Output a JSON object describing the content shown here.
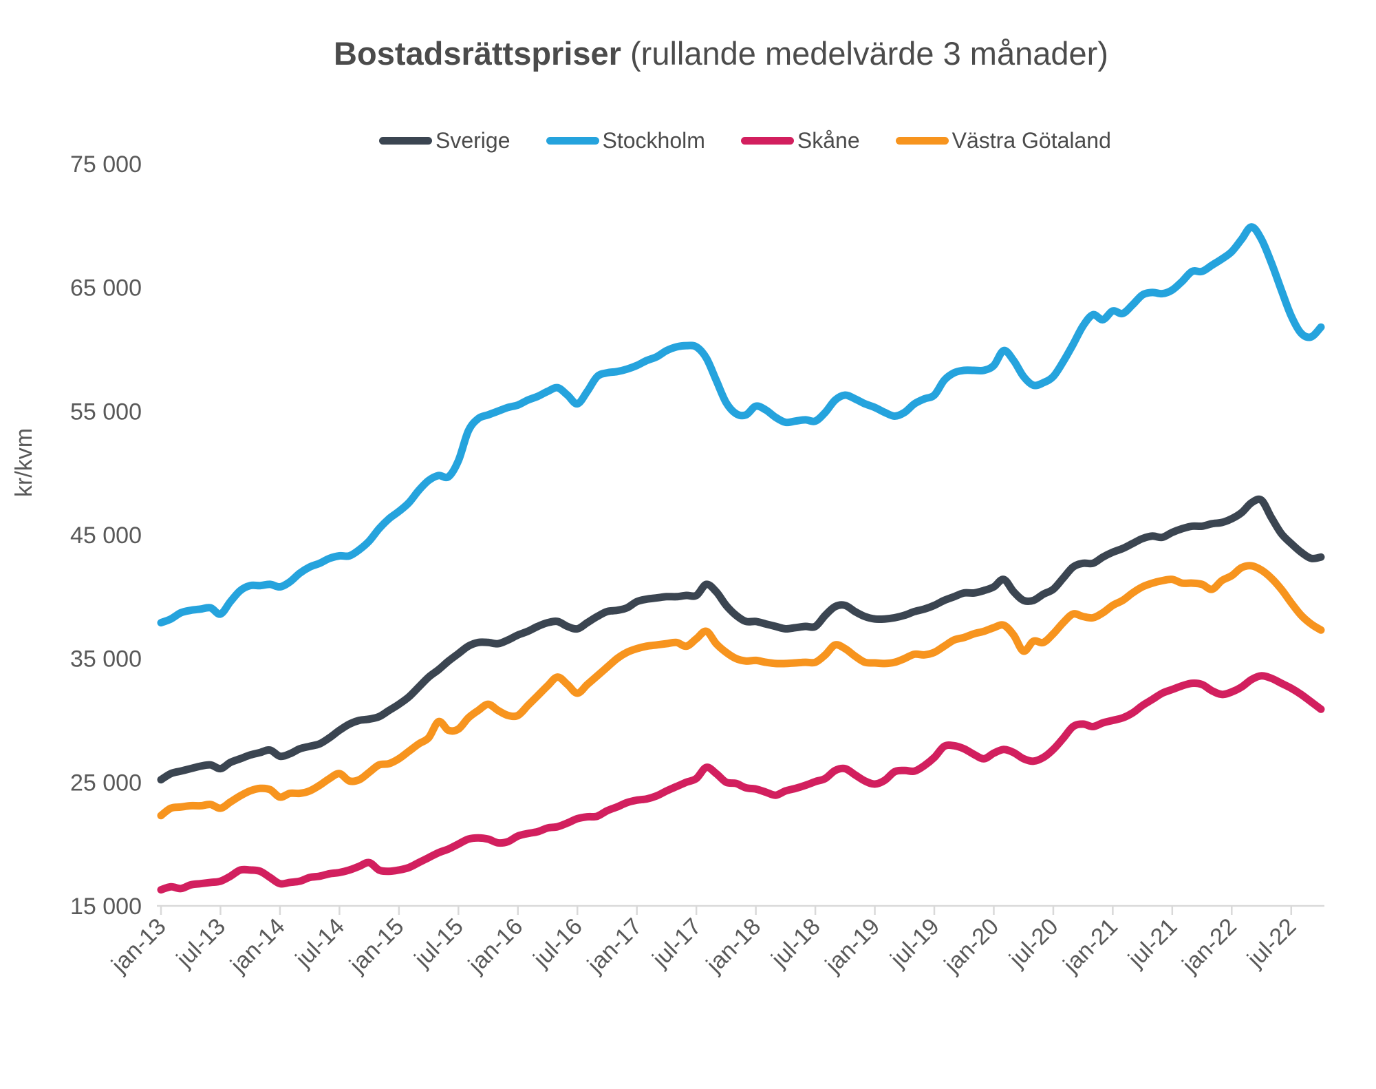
{
  "title": {
    "bold": "Bostadsrättspriser",
    "regular": " (rullande medelvärde 3 månader)"
  },
  "y_axis": {
    "label": "kr/kvm",
    "ticks": [
      "75 000",
      "65 000",
      "55 000",
      "45 000",
      "35 000",
      "25 000",
      "15 000"
    ],
    "tick_values": [
      75000,
      65000,
      55000,
      45000,
      35000,
      25000,
      15000
    ]
  },
  "x_axis": {
    "tick_labels": [
      "jan-13",
      "jul-13",
      "jan-14",
      "jul-14",
      "jan-15",
      "jul-15",
      "jan-16",
      "jul-16",
      "jan-17",
      "jul-17",
      "jan-18",
      "jul-18",
      "jan-19",
      "jul-19",
      "jan-20",
      "jul-20",
      "jan-21",
      "jul-21",
      "jan-22",
      "jul-22"
    ]
  },
  "colors": {
    "axis_line": "#d9d9d9",
    "text": "#595959",
    "title_text": "#4b4b4b",
    "background": "#ffffff"
  },
  "chart_data": {
    "type": "line",
    "title": "Bostadsrättspriser (rullande medelvärde 3 månader)",
    "xlabel": "",
    "ylabel": "kr/kvm",
    "ylim": [
      15000,
      75000
    ],
    "grid": false,
    "legend_position": "top",
    "x": {
      "start": "jan-13",
      "end": "okt-22",
      "interval": "month",
      "points": 118
    },
    "series": [
      {
        "name": "Sverige",
        "color": "#3b4551",
        "values": [
          25200,
          25700,
          25900,
          26100,
          26300,
          26400,
          26100,
          26600,
          26900,
          27200,
          27400,
          27600,
          27100,
          27300,
          27700,
          27900,
          28100,
          28600,
          29200,
          29700,
          30000,
          30100,
          30300,
          30800,
          31300,
          31900,
          32700,
          33500,
          34100,
          34800,
          35400,
          36000,
          36300,
          36300,
          36200,
          36500,
          36900,
          37200,
          37600,
          37900,
          38000,
          37600,
          37400,
          37900,
          38400,
          38800,
          38900,
          39100,
          39600,
          39800,
          39900,
          40000,
          40000,
          40100,
          40100,
          41000,
          40400,
          39300,
          38500,
          38000,
          38000,
          37800,
          37600,
          37400,
          37500,
          37600,
          37600,
          38500,
          39200,
          39300,
          38800,
          38400,
          38200,
          38200,
          38300,
          38500,
          38800,
          39000,
          39300,
          39700,
          40000,
          40300,
          40300,
          40500,
          40800,
          41400,
          40400,
          39700,
          39700,
          40200,
          40600,
          41500,
          42400,
          42700,
          42700,
          43200,
          43600,
          43900,
          44300,
          44700,
          44900,
          44800,
          45200,
          45500,
          45700,
          45700,
          45900,
          46000,
          46300,
          46800,
          47600,
          47800,
          46400,
          45100,
          44300,
          43600,
          43100,
          43200
        ]
      },
      {
        "name": "Stockholm",
        "color": "#25a3dd",
        "values": [
          37900,
          38200,
          38700,
          38900,
          39000,
          39100,
          38600,
          39600,
          40500,
          40900,
          40900,
          41000,
          40800,
          41200,
          41900,
          42400,
          42700,
          43100,
          43300,
          43300,
          43800,
          44500,
          45500,
          46300,
          46900,
          47600,
          48600,
          49400,
          49800,
          49700,
          51000,
          53400,
          54400,
          54700,
          55000,
          55300,
          55500,
          55900,
          56200,
          56600,
          56900,
          56300,
          55600,
          56600,
          57800,
          58100,
          58200,
          58400,
          58700,
          59100,
          59400,
          59900,
          60200,
          60300,
          60200,
          59300,
          57500,
          55700,
          54800,
          54700,
          55400,
          55100,
          54500,
          54100,
          54200,
          54300,
          54200,
          54900,
          55900,
          56300,
          56000,
          55600,
          55300,
          54900,
          54600,
          54900,
          55600,
          56000,
          56300,
          57500,
          58100,
          58300,
          58300,
          58300,
          58700,
          59900,
          59100,
          57800,
          57100,
          57300,
          57800,
          59000,
          60400,
          61900,
          62800,
          62400,
          63100,
          62900,
          63600,
          64400,
          64600,
          64500,
          64800,
          65500,
          66300,
          66300,
          66800,
          67300,
          67900,
          68900,
          69900,
          68900,
          67000,
          64800,
          62700,
          61300,
          61000,
          61800
        ]
      },
      {
        "name": "Skåne",
        "color": "#d21f5e",
        "values": [
          16300,
          16550,
          16400,
          16700,
          16800,
          16900,
          17000,
          17400,
          17900,
          17900,
          17800,
          17300,
          16800,
          16900,
          17000,
          17300,
          17400,
          17600,
          17700,
          17900,
          18200,
          18500,
          17900,
          17800,
          17900,
          18100,
          18500,
          18900,
          19300,
          19600,
          20000,
          20400,
          20500,
          20400,
          20100,
          20200,
          20650,
          20850,
          21000,
          21300,
          21400,
          21700,
          22050,
          22200,
          22250,
          22700,
          23000,
          23350,
          23550,
          23650,
          23900,
          24300,
          24650,
          25000,
          25300,
          26200,
          25700,
          25000,
          24900,
          24550,
          24450,
          24200,
          23950,
          24300,
          24500,
          24750,
          25050,
          25300,
          25950,
          26100,
          25600,
          25100,
          24850,
          25150,
          25850,
          25950,
          25900,
          26350,
          27000,
          27900,
          27950,
          27700,
          27250,
          26900,
          27350,
          27650,
          27400,
          26900,
          26700,
          27000,
          27650,
          28550,
          29500,
          29700,
          29500,
          29800,
          30000,
          30200,
          30600,
          31200,
          31700,
          32200,
          32500,
          32800,
          33000,
          32900,
          32400,
          32100,
          32300,
          32700,
          33300,
          33600,
          33400,
          33000,
          32600,
          32100,
          31500,
          30900
        ]
      },
      {
        "name": "Västra Götaland",
        "color": "#f7941e",
        "values": [
          22300,
          22900,
          23000,
          23100,
          23100,
          23200,
          22900,
          23400,
          23900,
          24300,
          24500,
          24400,
          23800,
          24100,
          24100,
          24300,
          24750,
          25300,
          25700,
          25100,
          25200,
          25800,
          26400,
          26500,
          26900,
          27500,
          28100,
          28600,
          29900,
          29200,
          29300,
          30200,
          30800,
          31300,
          30800,
          30400,
          30400,
          31200,
          32000,
          32800,
          33500,
          32900,
          32200,
          32900,
          33600,
          34300,
          35000,
          35500,
          35800,
          36000,
          36100,
          36200,
          36300,
          36000,
          36600,
          37200,
          36200,
          35500,
          35000,
          34800,
          34850,
          34700,
          34600,
          34600,
          34650,
          34700,
          34700,
          35300,
          36100,
          35800,
          35200,
          34700,
          34650,
          34600,
          34700,
          35000,
          35350,
          35300,
          35500,
          36000,
          36500,
          36700,
          37000,
          37200,
          37500,
          37700,
          36900,
          35600,
          36400,
          36300,
          37000,
          37900,
          38600,
          38400,
          38300,
          38700,
          39300,
          39700,
          40300,
          40800,
          41100,
          41300,
          41400,
          41100,
          41100,
          41000,
          40600,
          41300,
          41700,
          42350,
          42500,
          42150,
          41500,
          40600,
          39500,
          38500,
          37800,
          37300
        ]
      }
    ]
  }
}
